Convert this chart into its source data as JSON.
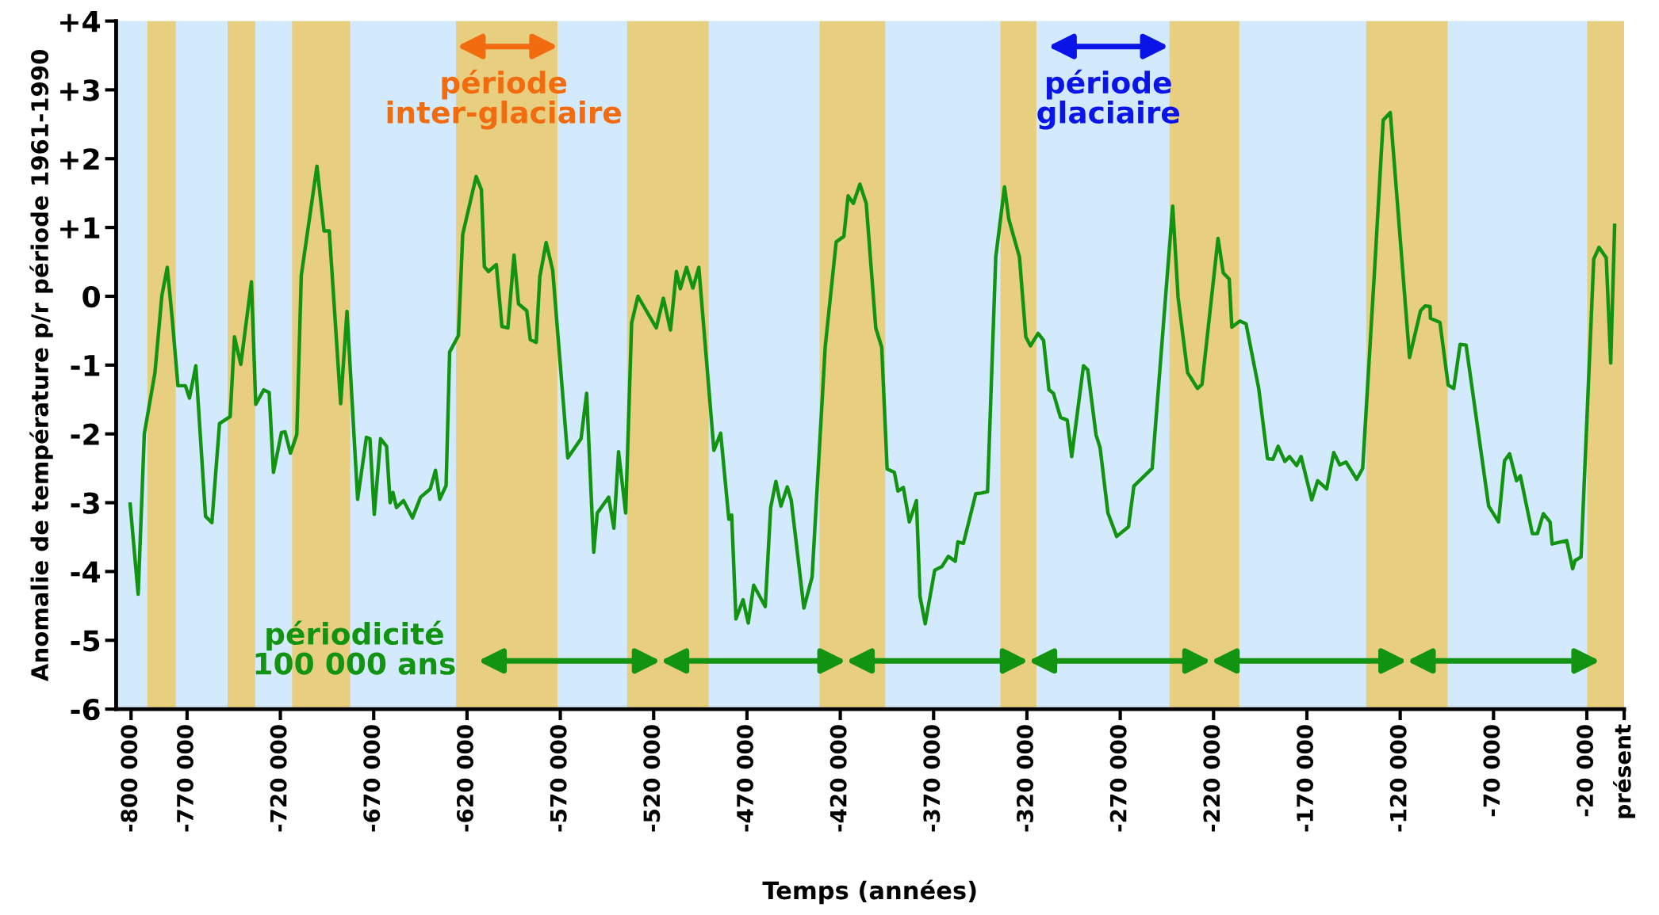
{
  "chart_data": {
    "type": "line",
    "xlabel": "Temps (années)",
    "ylabel": "Anomalie de température p/r période 1961-1990",
    "x": [
      -800500,
      -796200,
      -792900,
      -787200,
      -783500,
      -780600,
      -777800,
      -774900,
      -770900,
      -768700,
      -765300,
      -760100,
      -756700,
      -752600,
      -746900,
      -744600,
      -741200,
      -735500,
      -733200,
      -728900,
      -726000,
      -723700,
      -719400,
      -717500,
      -714600,
      -711200,
      -708800,
      -700400,
      -696600,
      -693800,
      -687700,
      -684300,
      -678600,
      -673900,
      -672000,
      -669700,
      -666300,
      -663100,
      -661200,
      -659700,
      -657800,
      -654000,
      -649200,
      -644900,
      -639700,
      -636900,
      -634600,
      -631200,
      -629300,
      -624600,
      -622300,
      -615100,
      -612300,
      -610700,
      -608500,
      -604300,
      -601300,
      -598100,
      -594800,
      -592400,
      -588000,
      -586100,
      -582900,
      -581000,
      -577600,
      -574100,
      -566000,
      -558900,
      -555900,
      -552100,
      -550200,
      -544100,
      -541300,
      -538800,
      -535000,
      -531800,
      -528400,
      -518600,
      -514800,
      -511000,
      -507800,
      -505700,
      -502400,
      -499000,
      -495800,
      -487700,
      -484100,
      -479700,
      -478200,
      -475900,
      -472100,
      -469300,
      -466400,
      -460200,
      -457300,
      -454500,
      -451800,
      -448400,
      -446300,
      -439500,
      -435100,
      -428100,
      -422200,
      -418100,
      -415800,
      -413000,
      -409500,
      -406100,
      -401000,
      -397800,
      -394900,
      -391000,
      -389100,
      -386200,
      -383000,
      -379200,
      -377300,
      -374500,
      -369400,
      -365600,
      -362100,
      -358400,
      -357000,
      -354000,
      -347400,
      -344300,
      -341100,
      -336700,
      -332000,
      -329700,
      -324000,
      -320600,
      -318100,
      -314000,
      -311100,
      -308200,
      -305800,
      -302000,
      -298400,
      -296000,
      -289700,
      -287400,
      -283000,
      -280800,
      -276600,
      -271900,
      -265600,
      -262700,
      -252900,
      -241900,
      -239000,
      -233900,
      -228600,
      -226200,
      -217600,
      -214800,
      -211600,
      -210200,
      -205900,
      -202600,
      -195800,
      -191100,
      -188200,
      -185400,
      -181800,
      -179300,
      -175500,
      -173100,
      -167400,
      -164200,
      -159400,
      -155600,
      -152400,
      -149000,
      -143300,
      -140100,
      -133800,
      -129100,
      -125300,
      -115000,
      -109100,
      -106600,
      -104000,
      -103800,
      -98700,
      -94300,
      -91300,
      -87900,
      -84700,
      -72600,
      -67300,
      -64100,
      -61400,
      -57700,
      -55600,
      -49200,
      -46500,
      -43300,
      -39700,
      -38600,
      -30800,
      -27600,
      -26300,
      -23100,
      -16300,
      -13500,
      -9600,
      -7200,
      -5100
    ],
    "series": [
      {
        "color": "#129412",
        "values": [
          -3.02,
          -4.33,
          -2.0,
          -1.11,
          0.01,
          0.42,
          -0.37,
          -1.3,
          -1.3,
          -1.48,
          -1.01,
          -3.2,
          -3.29,
          -1.85,
          -1.75,
          -0.59,
          -0.99,
          0.21,
          -1.57,
          -1.36,
          -1.4,
          -2.56,
          -1.98,
          -1.97,
          -2.28,
          -2.01,
          0.3,
          1.89,
          0.95,
          0.95,
          -1.56,
          -0.22,
          -2.95,
          -2.05,
          -2.07,
          -3.17,
          -2.07,
          -2.18,
          -3.0,
          -2.85,
          -3.07,
          -2.97,
          -3.22,
          -2.92,
          -2.8,
          -2.53,
          -2.95,
          -2.75,
          -0.81,
          -0.57,
          0.9,
          1.74,
          1.55,
          0.43,
          0.36,
          0.46,
          -0.44,
          -0.46,
          0.6,
          -0.11,
          -0.21,
          -0.63,
          -0.67,
          0.28,
          0.78,
          0.38,
          -2.35,
          -2.07,
          -1.41,
          -3.72,
          -3.15,
          -2.92,
          -3.37,
          -2.26,
          -3.15,
          -0.39,
          0.0,
          -0.46,
          -0.03,
          -0.49,
          0.36,
          0.11,
          0.42,
          0.12,
          0.42,
          -2.24,
          -1.99,
          -3.24,
          -3.18,
          -4.69,
          -4.41,
          -4.75,
          -4.2,
          -4.51,
          -3.07,
          -2.69,
          -3.05,
          -2.77,
          -2.96,
          -4.53,
          -4.08,
          -0.74,
          0.79,
          0.87,
          1.46,
          1.35,
          1.63,
          1.35,
          -0.46,
          -0.74,
          -2.51,
          -2.56,
          -2.83,
          -2.78,
          -3.28,
          -2.97,
          -4.36,
          -4.76,
          -3.98,
          -3.93,
          -3.78,
          -3.85,
          -3.57,
          -3.59,
          -2.87,
          -2.86,
          -2.84,
          0.57,
          1.59,
          1.12,
          0.57,
          -0.59,
          -0.72,
          -0.54,
          -0.64,
          -1.36,
          -1.41,
          -1.76,
          -1.8,
          -2.33,
          -1.01,
          -1.07,
          -2.01,
          -2.2,
          -3.15,
          -3.49,
          -3.35,
          -2.76,
          -2.5,
          1.31,
          -0.02,
          -1.11,
          -1.34,
          -1.28,
          0.84,
          0.34,
          0.25,
          -0.45,
          -0.36,
          -0.4,
          -1.34,
          -2.36,
          -2.37,
          -2.18,
          -2.4,
          -2.33,
          -2.46,
          -2.33,
          -2.96,
          -2.68,
          -2.8,
          -2.27,
          -2.45,
          -2.41,
          -2.66,
          -2.5,
          0.35,
          2.56,
          2.67,
          -0.89,
          -0.21,
          -0.14,
          -0.15,
          -0.32,
          -0.38,
          -1.29,
          -1.34,
          -0.7,
          -0.71,
          -3.05,
          -3.28,
          -2.39,
          -2.29,
          -2.68,
          -2.61,
          -3.45,
          -3.45,
          -3.16,
          -3.28,
          -3.6,
          -3.55,
          -3.96,
          -3.84,
          -3.79,
          0.54,
          0.71,
          0.56,
          -0.97,
          1.03
        ]
      }
    ],
    "xlim": [
      -808000,
      0
    ],
    "ylim": [
      -6,
      4
    ],
    "xticks": [
      {
        "value": -800000,
        "label": "-800 000"
      },
      {
        "value": -770000,
        "label": "-770 000"
      },
      {
        "value": -720000,
        "label": "-720 000"
      },
      {
        "value": -670000,
        "label": "-670 000"
      },
      {
        "value": -620000,
        "label": "-620 000"
      },
      {
        "value": -570000,
        "label": "-570 000"
      },
      {
        "value": -520000,
        "label": "-520 000"
      },
      {
        "value": -470000,
        "label": "-470 000"
      },
      {
        "value": -420000,
        "label": "-420 000"
      },
      {
        "value": -370000,
        "label": "-370 000"
      },
      {
        "value": -320000,
        "label": "-320 000"
      },
      {
        "value": -270000,
        "label": "-270 000"
      },
      {
        "value": -220000,
        "label": "-220 000"
      },
      {
        "value": -170000,
        "label": "-170 000"
      },
      {
        "value": -120000,
        "label": "-120 000"
      },
      {
        "value": -70000,
        "label": "-70 000"
      },
      {
        "value": -20000,
        "label": "-20 000"
      },
      {
        "value": 0,
        "label": "présent"
      }
    ],
    "yticks": [
      {
        "value": 4,
        "label": "+4"
      },
      {
        "value": 3,
        "label": "+3"
      },
      {
        "value": 2,
        "label": "+2"
      },
      {
        "value": 1,
        "label": "+1"
      },
      0,
      -1,
      -2,
      -3,
      -4,
      -5,
      -6
    ],
    "bands": [
      {
        "axis": "x",
        "from": -791300,
        "to": -776000,
        "color": "#e8cf80"
      },
      {
        "axis": "x",
        "from": -748300,
        "to": -733500,
        "color": "#e8cf80"
      },
      {
        "axis": "x",
        "from": -713700,
        "to": -682600,
        "color": "#e8cf80"
      },
      {
        "axis": "x",
        "from": -625900,
        "to": -571500,
        "color": "#e8cf80"
      },
      {
        "axis": "x",
        "from": -534200,
        "to": -490500,
        "color": "#e8cf80"
      },
      {
        "axis": "x",
        "from": -431100,
        "to": -395900,
        "color": "#e8cf80"
      },
      {
        "axis": "x",
        "from": -334200,
        "to": -314900,
        "color": "#e8cf80"
      },
      {
        "axis": "x",
        "from": -243600,
        "to": -206200,
        "color": "#e8cf80"
      },
      {
        "axis": "x",
        "from": -138200,
        "to": -94600,
        "color": "#e8cf80"
      },
      {
        "axis": "x",
        "from": -19800,
        "to": 0,
        "color": "#e8cf80"
      }
    ],
    "annotations": [
      "période\ninter-glaciaire",
      "période\nglaciaire",
      "périodicité\n100 000 ans"
    ],
    "grid": false,
    "legend": false,
    "marker": "none",
    "line_style": "solid"
  }
}
